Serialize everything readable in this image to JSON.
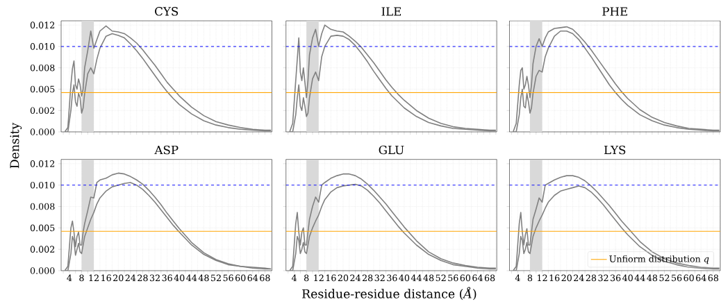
{
  "chart_data": [
    {
      "type": "line",
      "title": "CYS",
      "ylabel": "Density",
      "tick_labels": "y",
      "grid": true,
      "xlim": [
        1.3,
        70.3
      ],
      "ylim": [
        0,
        0.013
      ],
      "xticks": [
        {
          "value": 2,
          "label": null
        },
        4,
        {
          "value": 6,
          "label": null
        },
        8,
        {
          "value": 10,
          "label": null
        },
        12,
        {
          "value": 14,
          "label": null
        },
        16,
        {
          "value": 18,
          "label": null
        },
        20,
        {
          "value": 22,
          "label": null
        },
        24,
        {
          "value": 26,
          "label": null
        },
        28,
        {
          "value": 30,
          "label": null
        },
        32,
        {
          "value": 34,
          "label": null
        },
        36,
        {
          "value": 38,
          "label": null
        },
        40,
        {
          "value": 42,
          "label": null
        },
        44,
        {
          "value": 46,
          "label": null
        },
        48,
        {
          "value": 50,
          "label": null
        },
        52,
        {
          "value": 54,
          "label": null
        },
        56,
        {
          "value": 58,
          "label": null
        },
        60,
        {
          "value": 62,
          "label": null
        },
        64,
        {
          "value": 66,
          "label": null
        },
        68,
        {
          "value": 70,
          "label": null
        }
      ],
      "yticks": [
        {
          "value": 0,
          "label": "0.000"
        },
        {
          "value": 0.0025,
          "label": "0.002"
        },
        {
          "value": 0.005,
          "label": "0.005"
        },
        {
          "value": 0.0075,
          "label": "0.008"
        },
        {
          "value": 0.01,
          "label": "0.010"
        },
        {
          "value": 0.0125,
          "label": "0.012"
        }
      ],
      "bands": [
        {
          "axis": "x",
          "from": 8,
          "to": 12,
          "color": "#d9d9d9"
        }
      ],
      "ref_lines": [
        {
          "axis": "y",
          "value": 0.01,
          "color": "#0000ff",
          "line_style": "dashed"
        },
        {
          "axis": "y",
          "value": 0.0046,
          "color": "#ffa500",
          "line_style": "solid"
        }
      ],
      "x": [
        2.5,
        3.5,
        4.5,
        5,
        5.5,
        6,
        6.5,
        7,
        7.5,
        8,
        8.5,
        9,
        10,
        11,
        12,
        13,
        14,
        16,
        18,
        20,
        22,
        24,
        26,
        28,
        30,
        32,
        34,
        36,
        38,
        40,
        44,
        48,
        52,
        56,
        60,
        64,
        68,
        70
      ],
      "series": [
        {
          "color": "#808080",
          "values": [
            0,
            0.0005,
            0.0055,
            0.0074,
            0.0083,
            0.0055,
            0.005,
            0.0062,
            0.0055,
            0.0042,
            0.005,
            0.0075,
            0.0095,
            0.0118,
            0.0098,
            0.0108,
            0.0118,
            0.0124,
            0.0118,
            0.0117,
            0.0115,
            0.011,
            0.0104,
            0.0096,
            0.0087,
            0.0078,
            0.0068,
            0.0058,
            0.005,
            0.0042,
            0.0029,
            0.0019,
            0.0012,
            0.0008,
            0.0005,
            0.0003,
            0.0002,
            0.0002
          ]
        },
        {
          "color": "#808080",
          "values": [
            0,
            0,
            0.0025,
            0.0045,
            0.0055,
            0.0035,
            0.003,
            0.0045,
            0.004,
            0.0022,
            0.0028,
            0.0045,
            0.0068,
            0.0075,
            0.0068,
            0.0085,
            0.0098,
            0.0112,
            0.0115,
            0.0113,
            0.011,
            0.0103,
            0.0095,
            0.0086,
            0.0076,
            0.0066,
            0.0056,
            0.0047,
            0.0039,
            0.0032,
            0.0021,
            0.0013,
            0.0008,
            0.0005,
            0.0003,
            0.0002,
            0.0001,
            0.0001
          ]
        }
      ]
    },
    {
      "type": "line",
      "title": "ILE",
      "tick_labels": false,
      "grid": true,
      "xlim": [
        1.3,
        70.3
      ],
      "ylim": [
        0,
        0.013
      ],
      "xticks": [
        {
          "value": 2,
          "label": null
        },
        4,
        {
          "value": 6,
          "label": null
        },
        8,
        {
          "value": 10,
          "label": null
        },
        12,
        {
          "value": 14,
          "label": null
        },
        16,
        {
          "value": 18,
          "label": null
        },
        20,
        {
          "value": 22,
          "label": null
        },
        24,
        {
          "value": 26,
          "label": null
        },
        28,
        {
          "value": 30,
          "label": null
        },
        32,
        {
          "value": 34,
          "label": null
        },
        36,
        {
          "value": 38,
          "label": null
        },
        40,
        {
          "value": 42,
          "label": null
        },
        44,
        {
          "value": 46,
          "label": null
        },
        48,
        {
          "value": 50,
          "label": null
        },
        52,
        {
          "value": 54,
          "label": null
        },
        56,
        {
          "value": 58,
          "label": null
        },
        60,
        {
          "value": 62,
          "label": null
        },
        64,
        {
          "value": 66,
          "label": null
        },
        68,
        {
          "value": 70,
          "label": null
        }
      ],
      "yticks": [
        {
          "value": 0,
          "label": null
        },
        {
          "value": 0.0025,
          "label": null
        },
        {
          "value": 0.005,
          "label": null
        },
        {
          "value": 0.0075,
          "label": null
        },
        {
          "value": 0.01,
          "label": null
        },
        {
          "value": 0.0125,
          "label": null
        }
      ],
      "bands": [
        {
          "axis": "x",
          "from": 8,
          "to": 12,
          "color": "#d9d9d9"
        }
      ],
      "ref_lines": [
        {
          "axis": "y",
          "value": 0.01,
          "color": "#0000ff",
          "line_style": "dashed"
        },
        {
          "axis": "y",
          "value": 0.0046,
          "color": "#ffa500",
          "line_style": "solid"
        }
      ],
      "x": [
        2.5,
        3.5,
        4.5,
        5,
        5.5,
        6,
        6.5,
        7,
        7.5,
        8,
        8.5,
        9,
        10,
        11,
        12,
        13,
        14,
        16,
        18,
        20,
        22,
        24,
        26,
        28,
        30,
        32,
        34,
        36,
        38,
        40,
        44,
        48,
        52,
        56,
        60,
        64,
        68,
        70
      ],
      "series": [
        {
          "color": "#808080",
          "values": [
            0,
            0.001,
            0.006,
            0.0085,
            0.011,
            0.007,
            0.006,
            0.0075,
            0.0058,
            0.004,
            0.006,
            0.009,
            0.011,
            0.012,
            0.01,
            0.0115,
            0.0125,
            0.012,
            0.0118,
            0.0117,
            0.0112,
            0.0106,
            0.0099,
            0.009,
            0.0081,
            0.0071,
            0.0061,
            0.0052,
            0.0044,
            0.0037,
            0.0025,
            0.0016,
            0.001,
            0.0006,
            0.0004,
            0.0003,
            0.0002,
            0.0002
          ]
        },
        {
          "color": "#808080",
          "values": [
            0,
            0,
            0.002,
            0.004,
            0.0055,
            0.003,
            0.0025,
            0.004,
            0.003,
            0.0018,
            0.0022,
            0.004,
            0.0062,
            0.007,
            0.006,
            0.0088,
            0.01,
            0.0112,
            0.0113,
            0.0112,
            0.0108,
            0.0101,
            0.0092,
            0.0082,
            0.0071,
            0.0061,
            0.0051,
            0.0042,
            0.0035,
            0.0028,
            0.0018,
            0.0011,
            0.0007,
            0.0004,
            0.0003,
            0.0002,
            0.0001,
            0.0001
          ]
        }
      ]
    },
    {
      "type": "line",
      "title": "PHE",
      "tick_labels": false,
      "grid": true,
      "xlim": [
        1.3,
        70.3
      ],
      "ylim": [
        0,
        0.013
      ],
      "xticks": [
        {
          "value": 2,
          "label": null
        },
        4,
        {
          "value": 6,
          "label": null
        },
        8,
        {
          "value": 10,
          "label": null
        },
        12,
        {
          "value": 14,
          "label": null
        },
        16,
        {
          "value": 18,
          "label": null
        },
        20,
        {
          "value": 22,
          "label": null
        },
        24,
        {
          "value": 26,
          "label": null
        },
        28,
        {
          "value": 30,
          "label": null
        },
        32,
        {
          "value": 34,
          "label": null
        },
        36,
        {
          "value": 38,
          "label": null
        },
        40,
        {
          "value": 42,
          "label": null
        },
        44,
        {
          "value": 46,
          "label": null
        },
        48,
        {
          "value": 50,
          "label": null
        },
        52,
        {
          "value": 54,
          "label": null
        },
        56,
        {
          "value": 58,
          "label": null
        },
        60,
        {
          "value": 62,
          "label": null
        },
        64,
        {
          "value": 66,
          "label": null
        },
        68,
        {
          "value": 70,
          "label": null
        }
      ],
      "yticks": [
        {
          "value": 0,
          "label": null
        },
        {
          "value": 0.0025,
          "label": null
        },
        {
          "value": 0.005,
          "label": null
        },
        {
          "value": 0.0075,
          "label": null
        },
        {
          "value": 0.01,
          "label": null
        },
        {
          "value": 0.0125,
          "label": null
        }
      ],
      "bands": [
        {
          "axis": "x",
          "from": 8,
          "to": 12,
          "color": "#d9d9d9"
        }
      ],
      "ref_lines": [
        {
          "axis": "y",
          "value": 0.01,
          "color": "#0000ff",
          "line_style": "dashed"
        },
        {
          "axis": "y",
          "value": 0.0046,
          "color": "#ffa500",
          "line_style": "solid"
        }
      ],
      "x": [
        2.5,
        3.5,
        4.5,
        5,
        5.5,
        6,
        6.5,
        7,
        7.5,
        8,
        8.5,
        9,
        10,
        11,
        12,
        13,
        14,
        16,
        18,
        20,
        22,
        24,
        26,
        28,
        30,
        32,
        34,
        36,
        38,
        40,
        44,
        48,
        52,
        56,
        60,
        64,
        68,
        70
      ],
      "series": [
        {
          "color": "#808080",
          "values": [
            0,
            0.001,
            0.0055,
            0.0072,
            0.0075,
            0.005,
            0.0055,
            0.0065,
            0.0055,
            0.004,
            0.0055,
            0.008,
            0.01,
            0.0109,
            0.01,
            0.011,
            0.0117,
            0.0121,
            0.0122,
            0.0123,
            0.012,
            0.0113,
            0.0105,
            0.0096,
            0.0086,
            0.0076,
            0.0066,
            0.0056,
            0.0047,
            0.0039,
            0.0026,
            0.0017,
            0.0011,
            0.0007,
            0.0004,
            0.0003,
            0.0002,
            0.0002
          ]
        },
        {
          "color": "#808080",
          "values": [
            0,
            0,
            0.002,
            0.004,
            0.005,
            0.003,
            0.0028,
            0.0045,
            0.0035,
            0.0022,
            0.0028,
            0.0045,
            0.0065,
            0.0072,
            0.007,
            0.0088,
            0.0098,
            0.0112,
            0.0118,
            0.0118,
            0.0115,
            0.0108,
            0.0098,
            0.0088,
            0.0077,
            0.0066,
            0.0055,
            0.0046,
            0.0038,
            0.0031,
            0.002,
            0.0013,
            0.0008,
            0.0005,
            0.0003,
            0.0002,
            0.0001,
            0.0001
          ]
        }
      ]
    },
    {
      "type": "line",
      "title": "ASP",
      "grid": true,
      "xlim": [
        1.3,
        70.3
      ],
      "ylim": [
        0,
        0.013
      ],
      "xticks": [
        {
          "value": 2,
          "label": null
        },
        4,
        {
          "value": 6,
          "label": null
        },
        8,
        {
          "value": 10,
          "label": null
        },
        12,
        {
          "value": 14,
          "label": null
        },
        16,
        {
          "value": 18,
          "label": null
        },
        20,
        {
          "value": 22,
          "label": null
        },
        24,
        {
          "value": 26,
          "label": null
        },
        28,
        {
          "value": 30,
          "label": null
        },
        32,
        {
          "value": 34,
          "label": null
        },
        36,
        {
          "value": 38,
          "label": null
        },
        40,
        {
          "value": 42,
          "label": null
        },
        44,
        {
          "value": 46,
          "label": null
        },
        48,
        {
          "value": 50,
          "label": null
        },
        52,
        {
          "value": 54,
          "label": null
        },
        56,
        {
          "value": 58,
          "label": null
        },
        60,
        {
          "value": 62,
          "label": null
        },
        64,
        {
          "value": 66,
          "label": null
        },
        68,
        {
          "value": 70,
          "label": null
        }
      ],
      "yticks": [
        {
          "value": 0,
          "label": "0.000"
        },
        {
          "value": 0.0025,
          "label": "0.002"
        },
        {
          "value": 0.005,
          "label": "0.005"
        },
        {
          "value": 0.0075,
          "label": "0.008"
        },
        {
          "value": 0.01,
          "label": "0.010"
        },
        {
          "value": 0.0125,
          "label": "0.012"
        }
      ],
      "bands": [
        {
          "axis": "x",
          "from": 8,
          "to": 12,
          "color": "#d9d9d9"
        }
      ],
      "ref_lines": [
        {
          "axis": "y",
          "value": 0.01,
          "color": "#0000ff",
          "line_style": "dashed"
        },
        {
          "axis": "y",
          "value": 0.0046,
          "color": "#ffa500",
          "line_style": "solid"
        }
      ],
      "x": [
        2.5,
        3.5,
        4.5,
        5,
        5.5,
        6,
        6.5,
        7,
        7.5,
        8,
        8.5,
        9,
        10,
        11,
        12,
        13,
        14,
        16,
        18,
        20,
        22,
        24,
        26,
        28,
        30,
        32,
        34,
        36,
        38,
        40,
        44,
        48,
        52,
        56,
        60,
        64,
        68,
        70
      ],
      "series": [
        {
          "color": "#808080",
          "values": [
            0,
            0.0005,
            0.005,
            0.0058,
            0.0045,
            0.0028,
            0.004,
            0.0045,
            0.003,
            0.003,
            0.0045,
            0.0055,
            0.007,
            0.0086,
            0.0085,
            0.0103,
            0.0106,
            0.0108,
            0.0112,
            0.0114,
            0.0113,
            0.011,
            0.0106,
            0.0101,
            0.0094,
            0.0086,
            0.0077,
            0.0067,
            0.0058,
            0.0049,
            0.0033,
            0.0021,
            0.0013,
            0.0008,
            0.0005,
            0.0004,
            0.0003,
            0.0002
          ]
        },
        {
          "color": "#808080",
          "values": [
            0,
            0,
            0.002,
            0.004,
            0.0035,
            0.0018,
            0.0025,
            0.0032,
            0.0022,
            0.002,
            0.003,
            0.004,
            0.005,
            0.006,
            0.0068,
            0.0078,
            0.0085,
            0.0093,
            0.0098,
            0.01,
            0.0102,
            0.0103,
            0.01,
            0.0095,
            0.0088,
            0.008,
            0.0071,
            0.0062,
            0.0053,
            0.0045,
            0.003,
            0.0019,
            0.0012,
            0.0007,
            0.0005,
            0.0003,
            0.0002,
            0.0002
          ]
        }
      ]
    },
    {
      "type": "line",
      "title": "GLU",
      "xlabel": "Residue-residue distance (*Å*)",
      "tick_labels": "x",
      "grid": true,
      "xlim": [
        1.3,
        70.3
      ],
      "ylim": [
        0,
        0.013
      ],
      "xticks": [
        {
          "value": 2,
          "label": null
        },
        4,
        {
          "value": 6,
          "label": null
        },
        8,
        {
          "value": 10,
          "label": null
        },
        12,
        {
          "value": 14,
          "label": null
        },
        16,
        {
          "value": 18,
          "label": null
        },
        20,
        {
          "value": 22,
          "label": null
        },
        24,
        {
          "value": 26,
          "label": null
        },
        28,
        {
          "value": 30,
          "label": null
        },
        32,
        {
          "value": 34,
          "label": null
        },
        36,
        {
          "value": 38,
          "label": null
        },
        40,
        {
          "value": 42,
          "label": null
        },
        44,
        {
          "value": 46,
          "label": null
        },
        48,
        {
          "value": 50,
          "label": null
        },
        52,
        {
          "value": 54,
          "label": null
        },
        56,
        {
          "value": 58,
          "label": null
        },
        60,
        {
          "value": 62,
          "label": null
        },
        64,
        {
          "value": 66,
          "label": null
        },
        68,
        {
          "value": 70,
          "label": null
        }
      ],
      "yticks": [
        {
          "value": 0,
          "label": null
        },
        {
          "value": 0.0025,
          "label": null
        },
        {
          "value": 0.005,
          "label": null
        },
        {
          "value": 0.0075,
          "label": null
        },
        {
          "value": 0.01,
          "label": null
        },
        {
          "value": 0.0125,
          "label": null
        }
      ],
      "bands": [
        {
          "axis": "x",
          "from": 8,
          "to": 12,
          "color": "#d9d9d9"
        }
      ],
      "ref_lines": [
        {
          "axis": "y",
          "value": 0.01,
          "color": "#0000ff",
          "line_style": "dashed"
        },
        {
          "axis": "y",
          "value": 0.0046,
          "color": "#ffa500",
          "line_style": "solid"
        }
      ],
      "x": [
        2.5,
        3.5,
        4.5,
        5,
        5.5,
        6,
        6.5,
        7,
        7.5,
        8,
        8.5,
        9,
        10,
        11,
        12,
        13,
        14,
        16,
        18,
        20,
        22,
        24,
        26,
        28,
        30,
        32,
        34,
        36,
        38,
        40,
        44,
        48,
        52,
        56,
        60,
        64,
        68,
        70
      ],
      "series": [
        {
          "color": "#808080",
          "values": [
            0,
            0.0005,
            0.0055,
            0.0068,
            0.0045,
            0.003,
            0.0045,
            0.005,
            0.003,
            0.003,
            0.0045,
            0.006,
            0.0075,
            0.0086,
            0.008,
            0.01,
            0.0103,
            0.0108,
            0.0111,
            0.0113,
            0.0113,
            0.0111,
            0.0107,
            0.0101,
            0.0094,
            0.0086,
            0.0078,
            0.0069,
            0.006,
            0.0051,
            0.0035,
            0.0022,
            0.0014,
            0.0009,
            0.0006,
            0.0004,
            0.0003,
            0.0003
          ]
        },
        {
          "color": "#808080",
          "values": [
            0,
            0,
            0.002,
            0.004,
            0.0035,
            0.002,
            0.0025,
            0.0033,
            0.0022,
            0.002,
            0.003,
            0.004,
            0.005,
            0.0058,
            0.0065,
            0.0075,
            0.0083,
            0.0092,
            0.0097,
            0.0099,
            0.01,
            0.0101,
            0.0099,
            0.0094,
            0.0087,
            0.0079,
            0.007,
            0.0061,
            0.0052,
            0.0044,
            0.003,
            0.0019,
            0.0012,
            0.0007,
            0.0005,
            0.0003,
            0.0002,
            0.0002
          ]
        }
      ]
    },
    {
      "type": "line",
      "title": "LYS",
      "tick_labels": "x",
      "grid": true,
      "legend": "bottom right",
      "xlim": [
        1.3,
        70.3
      ],
      "ylim": [
        0,
        0.013
      ],
      "xticks": [
        {
          "value": 2,
          "label": null
        },
        4,
        {
          "value": 6,
          "label": null
        },
        8,
        {
          "value": 10,
          "label": null
        },
        12,
        {
          "value": 14,
          "label": null
        },
        16,
        {
          "value": 18,
          "label": null
        },
        20,
        {
          "value": 22,
          "label": null
        },
        24,
        {
          "value": 26,
          "label": null
        },
        28,
        {
          "value": 30,
          "label": null
        },
        32,
        {
          "value": 34,
          "label": null
        },
        36,
        {
          "value": 38,
          "label": null
        },
        40,
        {
          "value": 42,
          "label": null
        },
        44,
        {
          "value": 46,
          "label": null
        },
        48,
        {
          "value": 50,
          "label": null
        },
        52,
        {
          "value": 54,
          "label": null
        },
        56,
        {
          "value": 58,
          "label": null
        },
        60,
        {
          "value": 62,
          "label": null
        },
        64,
        {
          "value": 66,
          "label": null
        },
        68,
        {
          "value": 70,
          "label": null
        }
      ],
      "yticks": [
        {
          "value": 0,
          "label": null
        },
        {
          "value": 0.0025,
          "label": null
        },
        {
          "value": 0.005,
          "label": null
        },
        {
          "value": 0.0075,
          "label": null
        },
        {
          "value": 0.01,
          "label": null
        },
        {
          "value": 0.0125,
          "label": null
        }
      ],
      "bands": [
        {
          "axis": "x",
          "from": 8,
          "to": 12,
          "color": "#d9d9d9"
        }
      ],
      "ref_lines": [
        {
          "axis": "y",
          "value": 0.01,
          "color": "#0000ff",
          "line_style": "dashed"
        },
        {
          "axis": "y",
          "value": 0.0046,
          "color": "#ffa500",
          "line_style": "solid",
          "label": "Unfiorm distribution *q*"
        }
      ],
      "x": [
        2.5,
        3.5,
        4.5,
        5,
        5.5,
        6,
        6.5,
        7,
        7.5,
        8,
        8.5,
        9,
        10,
        11,
        12,
        13,
        14,
        16,
        18,
        20,
        22,
        24,
        26,
        28,
        30,
        32,
        34,
        36,
        38,
        40,
        44,
        48,
        52,
        56,
        60,
        64,
        68,
        70
      ],
      "series": [
        {
          "color": "#808080",
          "values": [
            0,
            0.0005,
            0.0055,
            0.0068,
            0.0045,
            0.003,
            0.0042,
            0.0049,
            0.003,
            0.003,
            0.0045,
            0.006,
            0.0072,
            0.0085,
            0.008,
            0.01,
            0.0102,
            0.0106,
            0.0109,
            0.0111,
            0.0111,
            0.0109,
            0.0105,
            0.0099,
            0.0092,
            0.0084,
            0.0076,
            0.0067,
            0.0058,
            0.005,
            0.0034,
            0.0022,
            0.0014,
            0.0009,
            0.0006,
            0.0004,
            0.0003,
            0.0003
          ]
        },
        {
          "color": "#808080",
          "values": [
            0,
            0,
            0.002,
            0.004,
            0.0035,
            0.002,
            0.0025,
            0.0033,
            0.0022,
            0.002,
            0.003,
            0.004,
            0.005,
            0.0058,
            0.0065,
            0.0073,
            0.008,
            0.0088,
            0.0093,
            0.0095,
            0.0097,
            0.0099,
            0.0097,
            0.0092,
            0.0085,
            0.0077,
            0.0068,
            0.0059,
            0.005,
            0.0042,
            0.0028,
            0.0018,
            0.0011,
            0.0007,
            0.0004,
            0.0003,
            0.0002,
            0.0002
          ]
        }
      ]
    }
  ]
}
